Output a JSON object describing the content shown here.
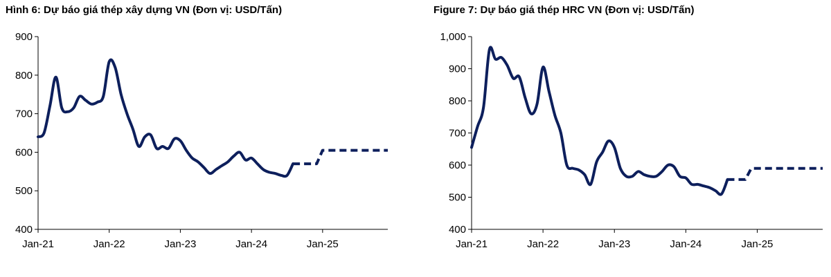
{
  "chart_data": [
    {
      "type": "line",
      "title": "Hình 6: Dự báo giá thép xây dựng VN (Đơn vị: USD/Tấn)",
      "ylim": [
        400,
        900
      ],
      "yticks": [
        400,
        500,
        600,
        700,
        800,
        900
      ],
      "ytick_labels": [
        "400",
        "500",
        "600",
        "700",
        "800",
        "900"
      ],
      "xlim": [
        "2021-01",
        "2025-12"
      ],
      "xticks": [
        "2021-01",
        "2022-01",
        "2023-01",
        "2024-01",
        "2025-01"
      ],
      "xtick_labels": [
        "Jan-21",
        "Jan-22",
        "Jan-23",
        "Jan-24",
        "Jan-25"
      ],
      "grid": false,
      "color": "#0d1f5c",
      "series": [
        {
          "style": "solid",
          "x": [
            "2021-01",
            "2021-02",
            "2021-03",
            "2021-04",
            "2021-05",
            "2021-06",
            "2021-07",
            "2021-08",
            "2021-09",
            "2021-10",
            "2021-11",
            "2021-12",
            "2022-01",
            "2022-02",
            "2022-03",
            "2022-04",
            "2022-05",
            "2022-06",
            "2022-07",
            "2022-08",
            "2022-09",
            "2022-10",
            "2022-11",
            "2022-12",
            "2023-01",
            "2023-02",
            "2023-03",
            "2023-04",
            "2023-05",
            "2023-06",
            "2023-07",
            "2023-08",
            "2023-09",
            "2023-10",
            "2023-11",
            "2023-12",
            "2024-01",
            "2024-02",
            "2024-03",
            "2024-04",
            "2024-05",
            "2024-06",
            "2024-07",
            "2024-08"
          ],
          "y": [
            640,
            650,
            720,
            795,
            715,
            705,
            715,
            745,
            735,
            725,
            730,
            745,
            835,
            820,
            750,
            700,
            660,
            615,
            640,
            645,
            610,
            615,
            610,
            635,
            630,
            605,
            585,
            575,
            560,
            545,
            555,
            565,
            575,
            590,
            600,
            580,
            585,
            570,
            555,
            548,
            545,
            540,
            540,
            570
          ]
        },
        {
          "style": "dashed",
          "x": [
            "2024-08",
            "2024-09",
            "2024-10",
            "2024-11",
            "2024-12",
            "2025-01",
            "2025-02",
            "2025-03",
            "2025-04",
            "2025-05",
            "2025-06",
            "2025-07",
            "2025-08",
            "2025-09",
            "2025-10",
            "2025-11",
            "2025-12"
          ],
          "y": [
            570,
            570,
            570,
            570,
            570,
            605,
            605,
            605,
            605,
            605,
            605,
            605,
            605,
            605,
            605,
            605,
            605
          ]
        }
      ]
    },
    {
      "type": "line",
      "title": "Figure 7: Dự báo giá thép HRC VN (Đơn vị: USD/Tấn)",
      "ylim": [
        400,
        1000
      ],
      "yticks": [
        400,
        500,
        600,
        700,
        800,
        900,
        1000
      ],
      "ytick_labels": [
        "400",
        "500",
        "600",
        "700",
        "800",
        "900",
        "1,000"
      ],
      "xlim": [
        "2021-01",
        "2025-12"
      ],
      "xticks": [
        "2021-01",
        "2022-01",
        "2023-01",
        "2024-01",
        "2025-01"
      ],
      "xtick_labels": [
        "Jan-21",
        "Jan-22",
        "Jan-23",
        "Jan-24",
        "Jan-25"
      ],
      "grid": false,
      "color": "#0d1f5c",
      "series": [
        {
          "style": "solid",
          "x": [
            "2021-01",
            "2021-02",
            "2021-03",
            "2021-04",
            "2021-05",
            "2021-06",
            "2021-07",
            "2021-08",
            "2021-09",
            "2021-10",
            "2021-11",
            "2021-12",
            "2022-01",
            "2022-02",
            "2022-03",
            "2022-04",
            "2022-05",
            "2022-06",
            "2022-07",
            "2022-08",
            "2022-09",
            "2022-10",
            "2022-11",
            "2022-12",
            "2023-01",
            "2023-02",
            "2023-03",
            "2023-04",
            "2023-05",
            "2023-06",
            "2023-07",
            "2023-08",
            "2023-09",
            "2023-10",
            "2023-11",
            "2023-12",
            "2024-01",
            "2024-02",
            "2024-03",
            "2024-04",
            "2024-05",
            "2024-06",
            "2024-07",
            "2024-08"
          ],
          "y": [
            655,
            720,
            780,
            960,
            930,
            935,
            910,
            870,
            875,
            810,
            760,
            790,
            905,
            830,
            755,
            700,
            600,
            590,
            585,
            570,
            540,
            610,
            640,
            675,
            655,
            590,
            565,
            565,
            580,
            570,
            565,
            565,
            580,
            600,
            595,
            565,
            560,
            540,
            540,
            535,
            530,
            520,
            510,
            555
          ]
        },
        {
          "style": "dashed",
          "x": [
            "2024-08",
            "2024-09",
            "2024-10",
            "2024-11",
            "2024-12",
            "2025-01",
            "2025-02",
            "2025-03",
            "2025-04",
            "2025-05",
            "2025-06",
            "2025-07",
            "2025-08",
            "2025-09",
            "2025-10",
            "2025-11",
            "2025-12"
          ],
          "y": [
            555,
            555,
            555,
            555,
            590,
            590,
            590,
            590,
            590,
            590,
            590,
            590,
            590,
            590,
            590,
            590,
            590
          ]
        }
      ]
    }
  ]
}
